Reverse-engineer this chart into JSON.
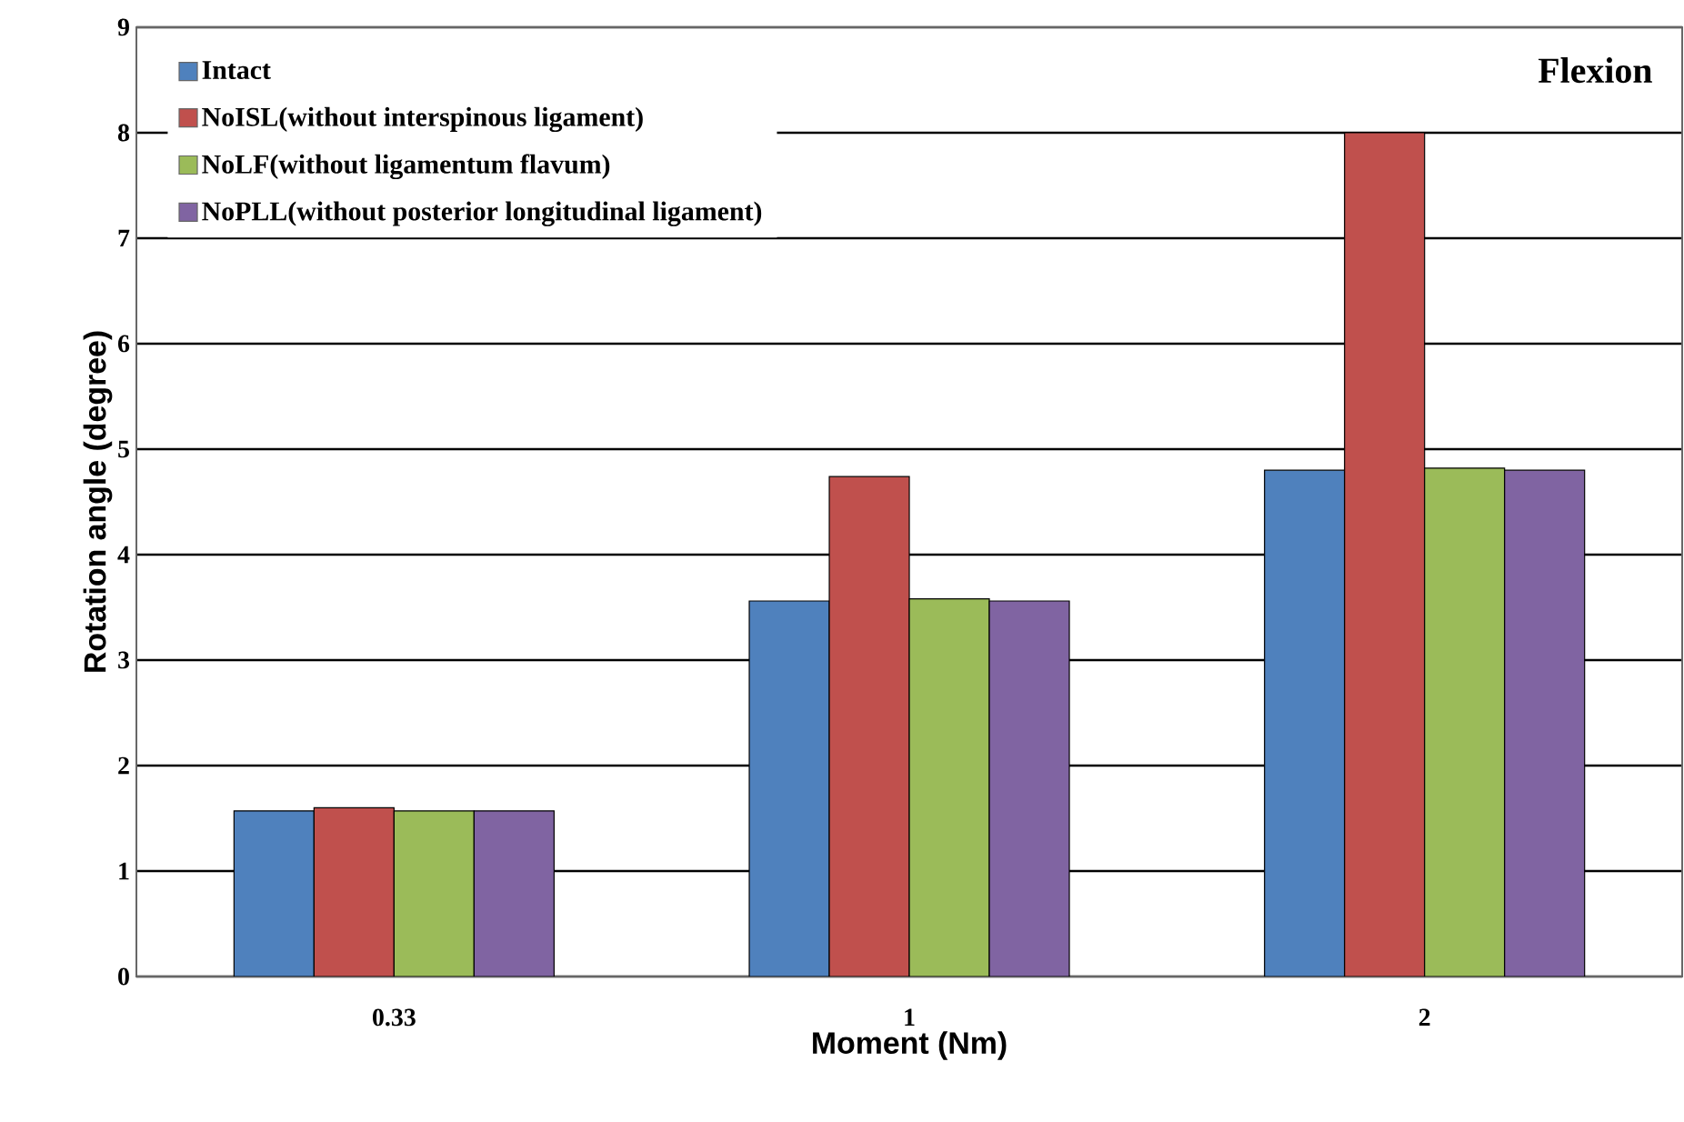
{
  "chart_data": {
    "type": "bar",
    "title": "Flexion",
    "xlabel": "Moment (Nm)",
    "ylabel": "Rotation angle (degree)",
    "categories": [
      "0.33",
      "1",
      "2"
    ],
    "series": [
      {
        "name": "Intact",
        "color": "#4f81bd",
        "values": [
          1.57,
          3.56,
          4.8
        ]
      },
      {
        "name": "NoISL(without interspinous ligament)",
        "color": "#c0504d",
        "values": [
          1.6,
          4.74,
          8.0
        ]
      },
      {
        "name": "NoLF(without ligamentum flavum)",
        "color": "#9bbb59",
        "values": [
          1.57,
          3.58,
          4.82
        ]
      },
      {
        "name": "NoPLL(without posterior longitudinal ligament)",
        "color": "#8064a2",
        "values": [
          1.57,
          3.56,
          4.8
        ]
      }
    ],
    "ylim": [
      0,
      9
    ],
    "yticks": [
      0,
      1,
      2,
      3,
      4,
      5,
      6,
      7,
      8,
      9
    ],
    "grid": "y",
    "legend": "top left"
  }
}
